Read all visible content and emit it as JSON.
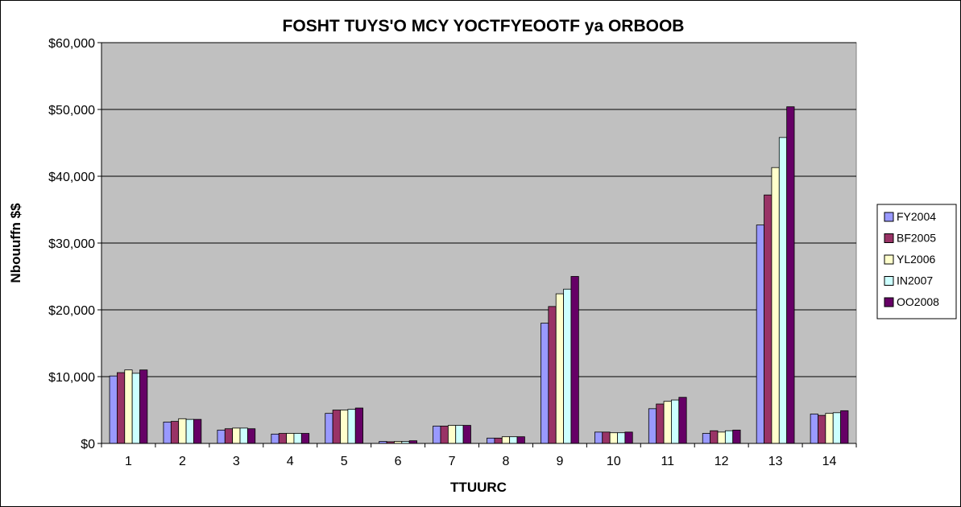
{
  "chart_data": {
    "type": "bar",
    "title": "FOSHT TUYS'O MCY YOCTFYEOOTF ya ORBOOB",
    "xlabel": "TTUURC",
    "ylabel": "Nbouuffn $$",
    "ylim": [
      0,
      60000
    ],
    "yticks": [
      0,
      10000,
      20000,
      30000,
      40000,
      50000,
      60000
    ],
    "ytick_labels": [
      "$0",
      "$10,000",
      "$20,000",
      "$30,000",
      "$40,000",
      "$50,000",
      "$60,000"
    ],
    "categories": [
      "1",
      "2",
      "3",
      "4",
      "5",
      "6",
      "7",
      "8",
      "9",
      "10",
      "11",
      "12",
      "13",
      "14"
    ],
    "grid": true,
    "legend_position": "right",
    "plot_background": "#c0c0c0",
    "series": [
      {
        "name": "FY2004",
        "color": "#9999ff",
        "values": [
          10100,
          3200,
          2000,
          1400,
          4500,
          300,
          2600,
          800,
          18000,
          1700,
          5200,
          1500,
          32700,
          4400
        ]
      },
      {
        "name": "BF2005",
        "color": "#993366",
        "values": [
          10600,
          3300,
          2200,
          1500,
          5000,
          250,
          2600,
          800,
          20500,
          1700,
          5900,
          1900,
          37200,
          4200
        ]
      },
      {
        "name": "YL2006",
        "color": "#ffffcc",
        "values": [
          11000,
          3700,
          2300,
          1500,
          5000,
          300,
          2700,
          1000,
          22400,
          1600,
          6300,
          1700,
          41300,
          4500
        ]
      },
      {
        "name": "IN2007",
        "color": "#ccffff",
        "values": [
          10500,
          3600,
          2300,
          1500,
          5100,
          300,
          2700,
          1000,
          23100,
          1600,
          6500,
          1900,
          45800,
          4600
        ]
      },
      {
        "name": "OO2008",
        "color": "#660066",
        "values": [
          11000,
          3600,
          2200,
          1500,
          5300,
          400,
          2700,
          1000,
          25000,
          1700,
          6900,
          2000,
          50400,
          4900
        ]
      }
    ]
  }
}
